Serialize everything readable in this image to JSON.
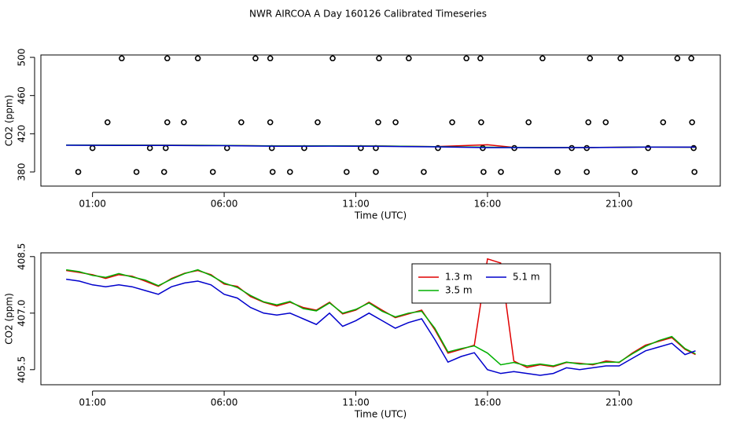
{
  "chart_data": [
    {
      "type": "line",
      "title": "NWR AIRCOA A  Day 160126  Calibrated Timeseries",
      "xlabel": "Time (UTC)",
      "ylabel": "CO2 (ppm)",
      "xlim": [
        -0.96,
        24.84
      ],
      "xticks": [
        {
          "value": 1,
          "label": "01:00"
        },
        {
          "value": 6,
          "label": "06:00"
        },
        {
          "value": 11,
          "label": "11:00"
        },
        {
          "value": 16,
          "label": "16:00"
        },
        {
          "value": 21,
          "label": "21:00"
        }
      ],
      "ylim": [
        365.2,
        502.5
      ],
      "yticks": [
        380,
        420,
        460,
        500
      ],
      "series": [
        {
          "type": "scatter",
          "color": "#000000",
          "x": [
            2.11,
            3.84,
            5.0,
            7.19,
            7.75,
            10.12,
            11.88,
            13.01,
            15.2,
            15.73,
            18.09,
            19.89,
            21.05,
            23.21,
            23.74,
            1.57,
            3.84,
            4.47,
            6.65,
            7.75,
            9.55,
            11.85,
            12.51,
            14.66,
            15.76,
            17.56,
            19.83,
            20.49,
            22.67,
            23.77,
            1.0,
            3.18,
            3.78,
            6.11,
            7.81,
            9.04,
            11.19,
            11.76,
            14.12,
            15.82,
            17.02,
            19.2,
            19.77,
            22.1,
            23.83,
            0.46,
            2.67,
            3.72,
            5.57,
            7.84,
            8.5,
            10.65,
            11.76,
            13.58,
            15.85,
            16.51,
            18.66,
            19.77,
            21.59,
            23.86
          ],
          "values": [
            499,
            499,
            499,
            499,
            499,
            499,
            499,
            499,
            499,
            499,
            499,
            499,
            499,
            499,
            499,
            432,
            432,
            432,
            432,
            432,
            432,
            432,
            432,
            432,
            432,
            432,
            432,
            432,
            432,
            432,
            405,
            405,
            405,
            405,
            405,
            405,
            405,
            405,
            405,
            405,
            405,
            405,
            405,
            405,
            405,
            380,
            380,
            380,
            380,
            380,
            380,
            380,
            380,
            380,
            380,
            380,
            380,
            380,
            380,
            380
          ]
        },
        {
          "type": "line",
          "color": "#e00000",
          "x": [
            0,
            2,
            4,
            6,
            8,
            10,
            12,
            14,
            16,
            17,
            18,
            20,
            22,
            23.9
          ],
          "values": [
            408.13,
            408.02,
            407.92,
            407.77,
            407.19,
            407.29,
            407.08,
            406.56,
            408.44,
            405.73,
            405.63,
            405.63,
            406.15,
            405.9
          ]
        },
        {
          "type": "line",
          "color": "#00b000",
          "x": [
            0,
            2,
            4,
            6,
            8,
            10,
            12,
            14,
            16,
            17,
            18,
            20,
            22,
            23.9
          ],
          "values": [
            408.13,
            408.02,
            407.92,
            407.77,
            407.19,
            407.29,
            407.08,
            406.56,
            405.94,
            405.69,
            405.63,
            405.63,
            406.15,
            405.9
          ]
        },
        {
          "type": "line",
          "color": "#0000cc",
          "x": [
            0,
            2,
            4,
            6,
            8,
            10,
            12,
            14,
            16,
            17,
            18,
            20,
            22,
            23.9
          ],
          "values": [
            407.9,
            407.75,
            407.7,
            407.5,
            406.95,
            407.0,
            406.8,
            406.3,
            405.5,
            405.45,
            405.35,
            405.55,
            406.0,
            406.0
          ]
        }
      ]
    },
    {
      "type": "line",
      "xlabel": "Time (UTC)",
      "ylabel": "CO2 (ppm)",
      "xlim": [
        -0.96,
        24.84
      ],
      "xticks": [
        {
          "value": 1,
          "label": "01:00"
        },
        {
          "value": 6,
          "label": "06:00"
        },
        {
          "value": 11,
          "label": "11:00"
        },
        {
          "value": 16,
          "label": "16:00"
        },
        {
          "value": 21,
          "label": "21:00"
        }
      ],
      "ylim": [
        405.1,
        408.6
      ],
      "yticks": [
        405.5,
        {
          "value": 407,
          "label": "407.0"
        },
        408.5
      ],
      "legend": "top",
      "x": [
        0,
        0.5,
        1,
        1.5,
        2,
        2.5,
        3,
        3.5,
        4,
        4.5,
        5,
        5.5,
        6,
        6.5,
        7,
        7.5,
        8,
        8.5,
        9,
        9.5,
        10,
        10.5,
        11,
        11.5,
        12,
        12.5,
        13,
        13.5,
        14,
        14.5,
        15,
        15.5,
        16,
        16.5,
        17,
        17.5,
        18,
        18.5,
        19,
        19.5,
        20,
        20.5,
        21,
        21.5,
        22,
        22.5,
        23,
        23.5,
        23.9
      ],
      "series": [
        {
          "name": "1.3 m",
          "color": "#e00000",
          "values": [
            408.13,
            408.08,
            408.02,
            407.92,
            408.02,
            407.98,
            407.85,
            407.71,
            407.92,
            408.06,
            408.13,
            408.02,
            407.77,
            407.71,
            407.44,
            407.29,
            407.19,
            407.29,
            407.15,
            407.08,
            407.29,
            406.98,
            407.08,
            407.29,
            407.08,
            406.88,
            406.98,
            407.08,
            406.56,
            405.94,
            406.04,
            406.15,
            408.44,
            408.33,
            405.73,
            405.56,
            405.63,
            405.58,
            405.69,
            405.67,
            405.63,
            405.73,
            405.69,
            405.94,
            406.15,
            406.25,
            406.35,
            406.04,
            405.9
          ]
        },
        {
          "name": "3.5 m",
          "color": "#00b000",
          "values": [
            408.15,
            408.1,
            408.0,
            407.95,
            408.05,
            407.96,
            407.88,
            407.73,
            407.9,
            408.05,
            408.15,
            408.0,
            407.8,
            407.68,
            407.47,
            407.3,
            407.22,
            407.31,
            407.12,
            407.06,
            407.27,
            407.0,
            407.1,
            407.27,
            407.05,
            406.9,
            407.0,
            407.05,
            406.6,
            405.97,
            406.06,
            406.13,
            405.94,
            405.63,
            405.69,
            405.6,
            405.65,
            405.6,
            405.7,
            405.65,
            405.65,
            405.7,
            405.7,
            405.92,
            406.12,
            406.27,
            406.38,
            406.06,
            405.92
          ]
        },
        {
          "name": "5.1 m",
          "color": "#0000cc",
          "values": [
            407.9,
            407.85,
            407.75,
            407.7,
            407.75,
            407.7,
            407.6,
            407.5,
            407.7,
            407.8,
            407.85,
            407.75,
            407.5,
            407.4,
            407.15,
            407.0,
            406.95,
            407.0,
            406.85,
            406.7,
            407.0,
            406.65,
            406.8,
            407.0,
            406.8,
            406.6,
            406.75,
            406.85,
            406.3,
            405.7,
            405.85,
            405.95,
            405.5,
            405.4,
            405.45,
            405.4,
            405.35,
            405.4,
            405.55,
            405.5,
            405.55,
            405.6,
            405.6,
            405.8,
            406.0,
            406.1,
            406.2,
            405.9,
            406.0
          ]
        }
      ]
    }
  ]
}
